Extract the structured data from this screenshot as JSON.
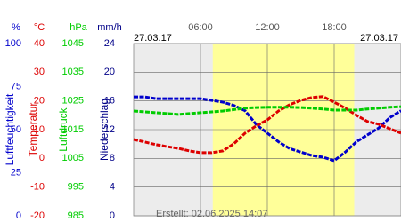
{
  "chart_data": {
    "type": "line",
    "date_left": "27.03.17",
    "date_right": "27.03.17",
    "footer": "Erstellt: 02.06.2025 14:07",
    "x": [
      0,
      1,
      2,
      3,
      4,
      5,
      6,
      7,
      8,
      9,
      10,
      11,
      12,
      13,
      14,
      15,
      16,
      17,
      18,
      19,
      20,
      21,
      22,
      23,
      24
    ],
    "xlim": [
      0,
      24
    ],
    "xticks": [
      {
        "value": 6,
        "label": "06:00"
      },
      {
        "value": 12,
        "label": "12:00"
      },
      {
        "value": 18,
        "label": "18:00"
      }
    ],
    "daylight": [
      7.1,
      19.8
    ],
    "axes": [
      {
        "unit": "%",
        "name": "Luftfeuchtigkeit",
        "color": "#0000cc",
        "lim": [
          0,
          100
        ],
        "ticks": [
          0,
          25,
          50,
          75,
          100
        ]
      },
      {
        "unit": "°C",
        "name": "Temperatur",
        "color": "#dd0000",
        "lim": [
          -20,
          40
        ],
        "ticks": [
          -20,
          -10,
          0,
          10,
          20,
          30,
          40
        ]
      },
      {
        "unit": "hPa",
        "name": "Luftdruck",
        "color": "#00cc00",
        "lim": [
          985,
          1045
        ],
        "ticks": [
          985,
          995,
          1005,
          1015,
          1025,
          1035,
          1045
        ]
      },
      {
        "unit": "mm/h",
        "name": "Niederschlag",
        "color": "#000088",
        "lim": [
          0,
          24
        ],
        "ticks": [
          0,
          4,
          8,
          12,
          16,
          20,
          24
        ]
      }
    ],
    "grid": true,
    "series": [
      {
        "axis": 0,
        "color": "#0000cc",
        "values": [
          69,
          69,
          68,
          68,
          68,
          68,
          68,
          67,
          66,
          64,
          61,
          53,
          48,
          43,
          39,
          37,
          35,
          34,
          32,
          37,
          43,
          47,
          51,
          57,
          61
        ]
      },
      {
        "axis": 1,
        "color": "#dd0000",
        "values": [
          6.6,
          5.7,
          4.8,
          4.1,
          3.5,
          2.6,
          2.0,
          2.0,
          2.6,
          5.1,
          8.8,
          11.3,
          13.4,
          16.5,
          18.7,
          20.2,
          21.2,
          21.5,
          19.6,
          17.5,
          15.0,
          12.8,
          11.9,
          10.3,
          8.8
        ]
      },
      {
        "axis": 2,
        "color": "#00cc00",
        "values": [
          1021.5,
          1021.2,
          1020.9,
          1020.6,
          1020.3,
          1020.6,
          1020.9,
          1021.2,
          1021.5,
          1022.0,
          1022.5,
          1022.7,
          1022.8,
          1022.8,
          1022.8,
          1022.7,
          1022.5,
          1022.2,
          1021.8,
          1021.8,
          1021.8,
          1022.2,
          1022.5,
          1022.8,
          1023.0
        ]
      }
    ]
  }
}
